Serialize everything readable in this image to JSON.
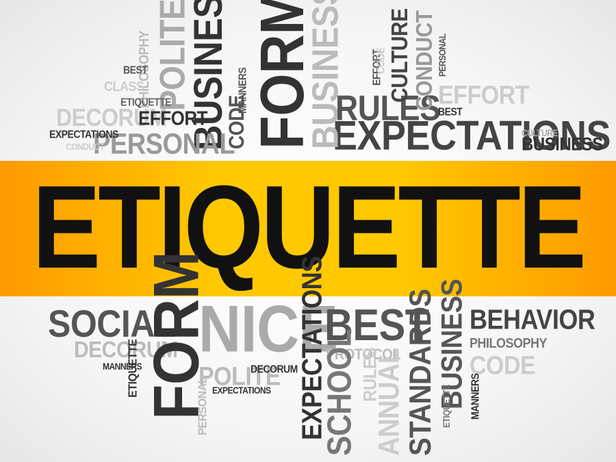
{
  "title": "ETIQUETTE",
  "colors": {
    "banner_center": "#ffc800",
    "banner_edge": "#ff9a00",
    "title": "#111111"
  },
  "top_words": [
    {
      "text": "EXPECTATIONS",
      "size": 54,
      "color": "#444444",
      "rot": 0
    },
    {
      "text": "FORM",
      "size": 80,
      "color": "#333333",
      "rot": -90
    },
    {
      "text": "BUSINESS",
      "size": 52,
      "color": "#333333",
      "rot": -90
    },
    {
      "text": "BUSINESS",
      "size": 48,
      "color": "#bbbbbb",
      "rot": -90
    },
    {
      "text": "PERSONAL",
      "size": 38,
      "color": "#999999",
      "rot": 0
    },
    {
      "text": "DECORUM",
      "size": 32,
      "color": "#cccccc",
      "rot": 0
    },
    {
      "text": "RULES",
      "size": 46,
      "color": "#555555",
      "rot": 0
    },
    {
      "text": "BUSINESS",
      "size": 24,
      "color": "#333333",
      "rot": 0
    },
    {
      "text": "POLITE",
      "size": 46,
      "color": "#aaaaaa",
      "rot": -90
    },
    {
      "text": "CODE",
      "size": 28,
      "color": "#555555",
      "rot": -90
    },
    {
      "text": "MANNERS",
      "size": 14,
      "color": "#555555",
      "rot": -90
    },
    {
      "text": "EFFORT",
      "size": 26,
      "color": "#333333",
      "rot": 0
    },
    {
      "text": "EFFORT",
      "size": 34,
      "color": "#cccccc",
      "rot": 0
    },
    {
      "text": "CULTURE",
      "size": 30,
      "color": "#444444",
      "rot": -90
    },
    {
      "text": "CONDUCT",
      "size": 30,
      "color": "#999999",
      "rot": -90
    },
    {
      "text": "PHILOSOPHY",
      "size": 18,
      "color": "#bbbbbb",
      "rot": -90
    },
    {
      "text": "ETIQUETTE",
      "size": 14,
      "color": "#666666",
      "rot": 0
    },
    {
      "text": "CLASS",
      "size": 18,
      "color": "#cccccc",
      "rot": 0
    },
    {
      "text": "BEST",
      "size": 14,
      "color": "#555555",
      "rot": 0
    },
    {
      "text": "EXPECTATIONS",
      "size": 14,
      "color": "#333333",
      "rot": 0
    },
    {
      "text": "CONDUCT",
      "size": 12,
      "color": "#cccccc",
      "rot": 0
    },
    {
      "text": "BEST",
      "size": 14,
      "color": "#333333",
      "rot": 0
    },
    {
      "text": "EFFORT",
      "size": 14,
      "color": "#555555",
      "rot": -90
    },
    {
      "text": "CODE",
      "size": 14,
      "color": "#cccccc",
      "rot": -90
    },
    {
      "text": "PERSONAL",
      "size": 12,
      "color": "#555555",
      "rot": -90
    },
    {
      "text": "CULTURE",
      "size": 12,
      "color": "#aaaaaa",
      "rot": 0
    }
  ],
  "bottom_words": [
    {
      "text": "SOCIAL",
      "size": 50,
      "color": "#555555",
      "rot": 0
    },
    {
      "text": "DECORUM",
      "size": 30,
      "color": "#bbbbbb",
      "rot": 0
    },
    {
      "text": "MANNERS",
      "size": 12,
      "color": "#333333",
      "rot": 0
    },
    {
      "text": "ETIQUETTE",
      "size": 16,
      "color": "#333333",
      "rot": -90
    },
    {
      "text": "FORM",
      "size": 84,
      "color": "#333333",
      "rot": -90
    },
    {
      "text": "NICE",
      "size": 86,
      "color": "#aaaaaa",
      "rot": 0
    },
    {
      "text": "POLITE",
      "size": 34,
      "color": "#bbbbbb",
      "rot": 0
    },
    {
      "text": "DECORUM",
      "size": 14,
      "color": "#333333",
      "rot": 0
    },
    {
      "text": "EXPECTATIONS",
      "size": 12,
      "color": "#333333",
      "rot": 0
    },
    {
      "text": "PERSONAL",
      "size": 16,
      "color": "#bbbbbb",
      "rot": -90
    },
    {
      "text": "EXPECTATIONS",
      "size": 36,
      "color": "#333333",
      "rot": -90
    },
    {
      "text": "BEST",
      "size": 58,
      "color": "#555555",
      "rot": 0
    },
    {
      "text": "PROTOCOL",
      "size": 20,
      "color": "#bbbbbb",
      "rot": 0
    },
    {
      "text": "SCHOOL",
      "size": 44,
      "color": "#777777",
      "rot": -90
    },
    {
      "text": "RULES",
      "size": 24,
      "color": "#cccccc",
      "rot": -90
    },
    {
      "text": "ANNUAL",
      "size": 38,
      "color": "#cccccc",
      "rot": -90
    },
    {
      "text": "STANDARDS",
      "size": 40,
      "color": "#555555",
      "rot": -90
    },
    {
      "text": "BUSINESS",
      "size": 38,
      "color": "#555555",
      "rot": -90
    },
    {
      "text": "ETIQUETTE",
      "size": 12,
      "color": "#777777",
      "rot": -90
    },
    {
      "text": "BEHAVIOR",
      "size": 36,
      "color": "#444444",
      "rot": 0
    },
    {
      "text": "PHILOSOPHY",
      "size": 18,
      "color": "#777777",
      "rot": 0
    },
    {
      "text": "CODE",
      "size": 34,
      "color": "#cccccc",
      "rot": 0
    },
    {
      "text": "MANNERS",
      "size": 14,
      "color": "#333333",
      "rot": -90
    }
  ]
}
